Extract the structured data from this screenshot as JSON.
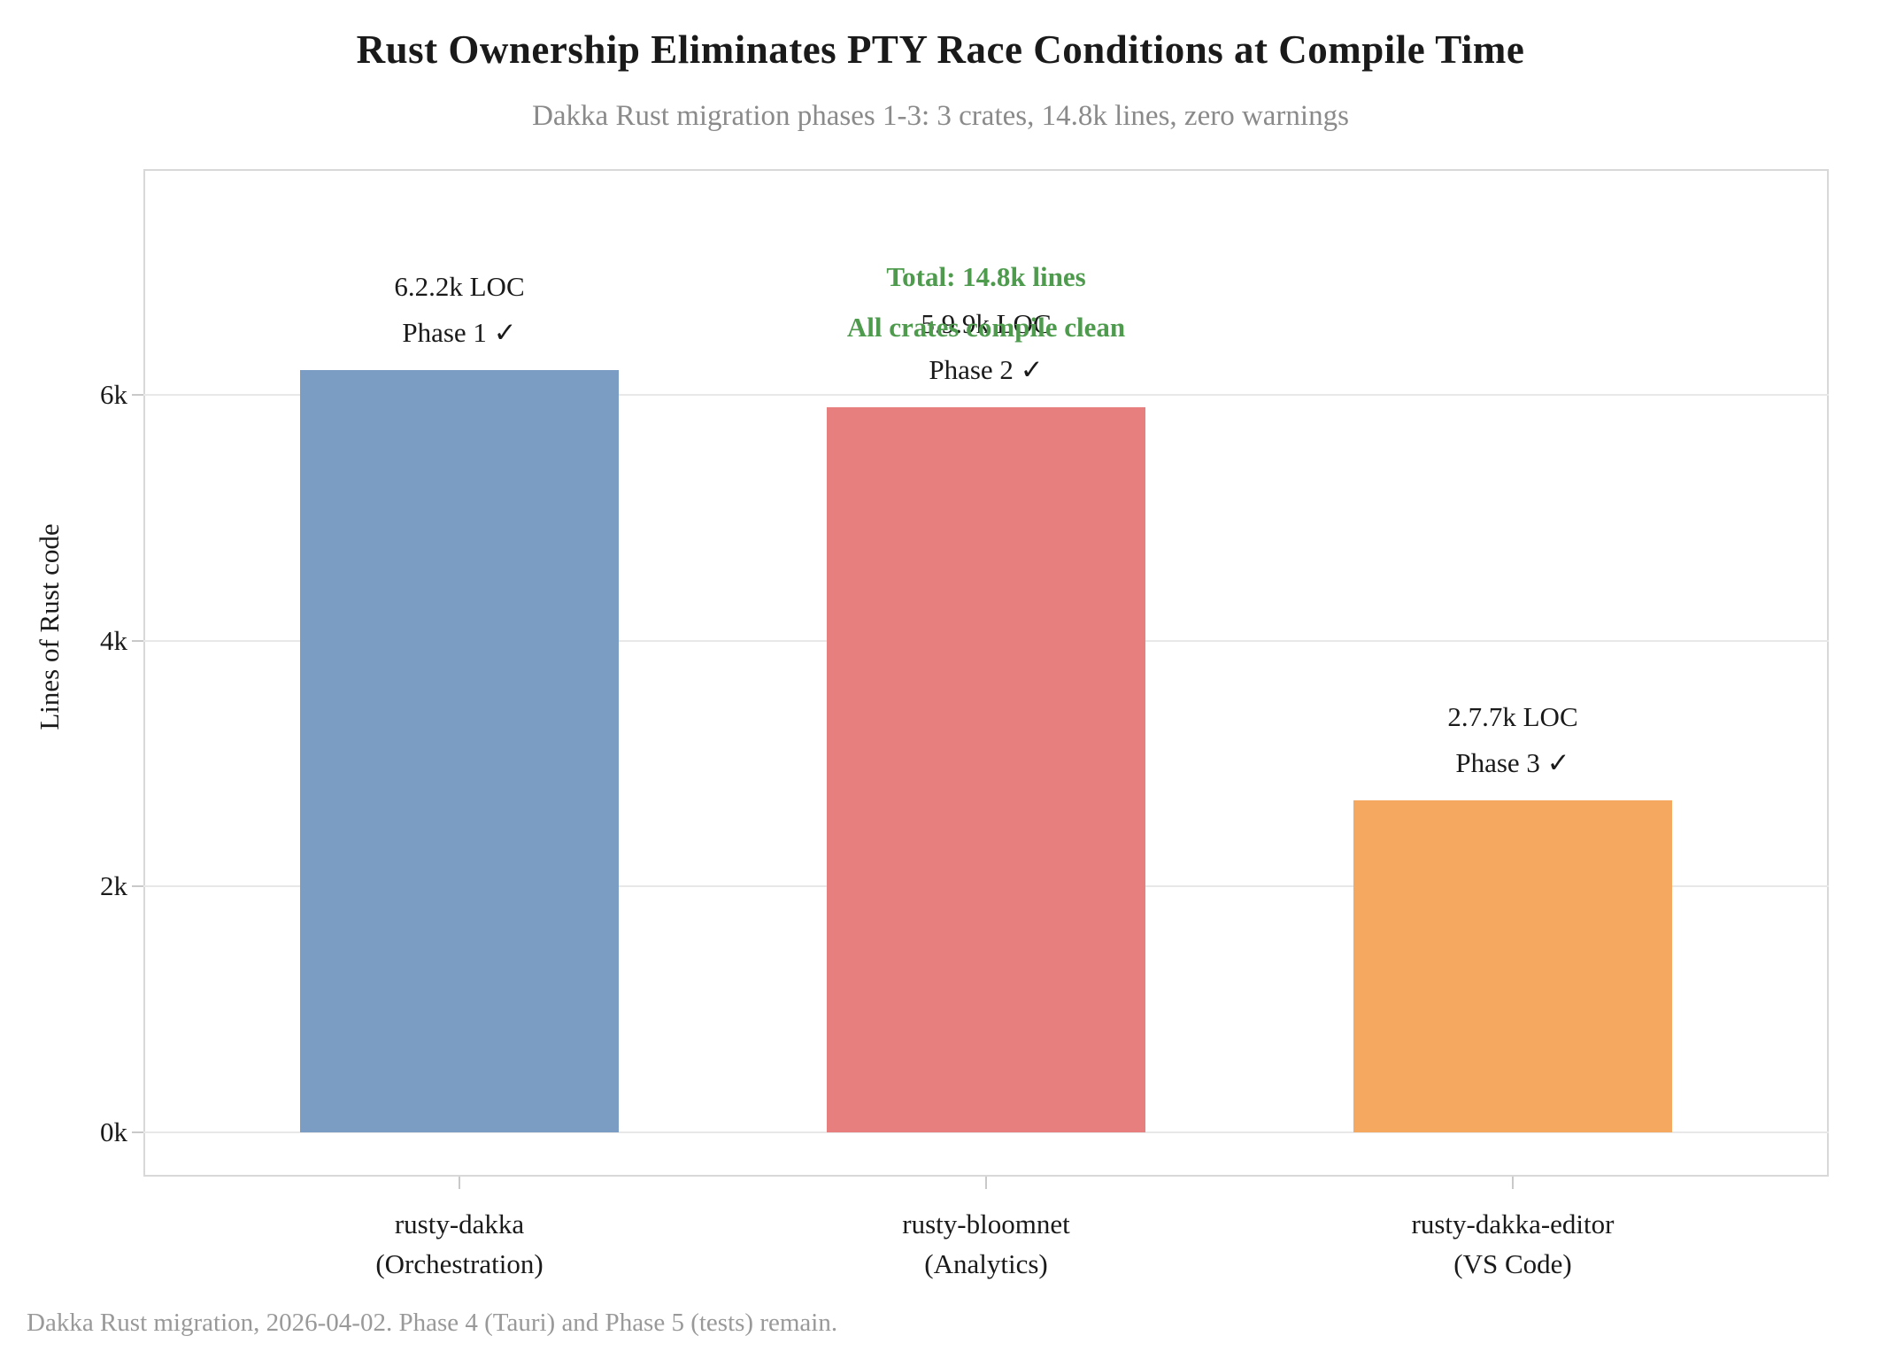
{
  "title": "Rust Ownership Eliminates PTY Race Conditions at Compile Time",
  "subtitle": "Dakka Rust migration phases 1-3: 3 crates, 14.8k lines, zero warnings",
  "footer": "Dakka Rust migration, 2026-04-02. Phase 4 (Tauri) and Phase 5 (tests) remain.",
  "colors": {
    "bar_blue": "#7b9cc3",
    "bar_red": "#e77f7f",
    "bar_orange": "#f4a860",
    "annotation_green": "#4e9b4e",
    "text_dark": "#1a1a1a",
    "text_gray": "#8a8a8a",
    "footer_gray": "#999999",
    "grid": "#e8e8e8",
    "plot_border": "#d8d8d8"
  },
  "chart_data": {
    "type": "bar",
    "title": "Rust Ownership Eliminates PTY Race Conditions at Compile Time",
    "subtitle": "Dakka Rust migration phases 1-3: 3 crates, 14.8k lines, zero warnings",
    "xlabel": "",
    "ylabel": "Lines of Rust code",
    "ylim_k": [
      0,
      7.8
    ],
    "ytick_labels": [
      "0k",
      "2k",
      "4k",
      "6k"
    ],
    "ytick_values_k": [
      0,
      2,
      4,
      6
    ],
    "grid": "horizontal",
    "legend": "none",
    "categories": [
      "rusty-dakka",
      "rusty-bloomnet",
      "rusty-dakka-editor"
    ],
    "bars": [
      {
        "name": "rusty-dakka",
        "sublabel": "(Orchestration)",
        "value_k": 6.2,
        "value_loc": 6200,
        "label_line1": "6.2.2k LOC",
        "label_line2": "Phase 1 ✓",
        "color_key": "bar_blue"
      },
      {
        "name": "rusty-bloomnet",
        "sublabel": "(Analytics)",
        "value_k": 5.9,
        "value_loc": 5900,
        "label_line1": "5.9.9k LOC",
        "label_line2": "Phase 2 ✓",
        "color_key": "bar_red"
      },
      {
        "name": "rusty-dakka-editor",
        "sublabel": "(VS Code)",
        "value_k": 2.7,
        "value_loc": 2700,
        "label_line1": "2.7.7k LOC",
        "label_line2": "Phase 3 ✓",
        "color_key": "bar_orange"
      }
    ],
    "annotation": {
      "line1": "Total: 14.8k lines",
      "line2": "All crates compile clean"
    },
    "total_lines_k": 14.8
  }
}
